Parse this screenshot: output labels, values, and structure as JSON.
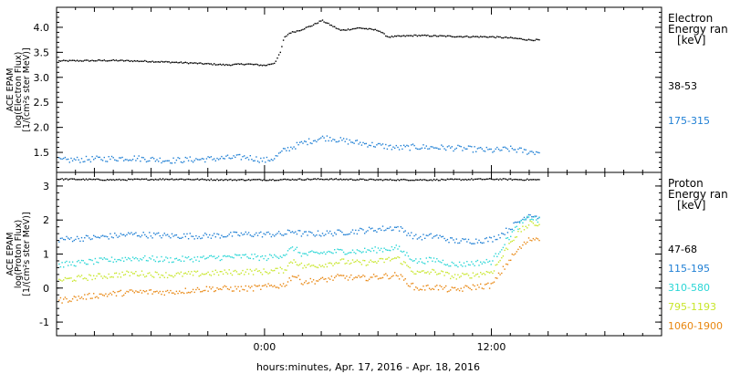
{
  "chart_data": [
    {
      "type": "scatter",
      "panel": "electron",
      "ylabel_lines": [
        "ACE EPAM",
        "log(Electron Flux)",
        "[1/(cm²s ster MeV)]"
      ],
      "ylim": [
        1.1,
        4.4
      ],
      "yticks": [
        1.5,
        2.0,
        2.5,
        3.0,
        3.5,
        4.0
      ],
      "ytick_labels": [
        "1.5",
        "2.0",
        "2.5",
        "3.0",
        "3.5",
        "4.0"
      ],
      "legend_title_lines": [
        "Electron",
        "Energy ran",
        "[keV]"
      ],
      "x_range_hours": [
        -11,
        21
      ],
      "series": [
        {
          "name": "38-53",
          "color": "#000000",
          "x": [
            -10.9,
            -8,
            -6,
            -4,
            -3,
            -2,
            -1,
            0,
            0.5,
            0.8,
            1,
            1.3,
            1.8,
            2.5,
            3,
            3.5,
            4,
            5,
            6,
            6.5,
            7,
            8,
            10,
            12,
            13,
            14,
            14.5
          ],
          "y": [
            3.34,
            3.35,
            3.33,
            3.3,
            3.28,
            3.26,
            3.28,
            3.25,
            3.3,
            3.5,
            3.8,
            3.9,
            3.95,
            4.05,
            4.15,
            4.05,
            3.95,
            4.0,
            3.95,
            3.82,
            3.83,
            3.85,
            3.83,
            3.82,
            3.8,
            3.76,
            3.76
          ]
        },
        {
          "name": "175-315",
          "color": "#1f7fd4",
          "x": [
            -10.9,
            -9,
            -7,
            -5,
            -3,
            -2,
            -1,
            0,
            0.5,
            1,
            2,
            3,
            3.5,
            4,
            5,
            6,
            7,
            8,
            10,
            12,
            13,
            14,
            14.5
          ],
          "y": [
            1.35,
            1.38,
            1.4,
            1.35,
            1.38,
            1.4,
            1.42,
            1.35,
            1.4,
            1.55,
            1.7,
            1.8,
            1.8,
            1.75,
            1.7,
            1.65,
            1.6,
            1.62,
            1.6,
            1.55,
            1.58,
            1.52,
            1.52
          ]
        }
      ]
    },
    {
      "type": "scatter",
      "panel": "proton",
      "ylabel_lines": [
        "ACE EPAM",
        "log(Proton Flux)",
        "[1/(cm²s ster MeV)]"
      ],
      "ylim": [
        -1.4,
        3.4
      ],
      "yticks": [
        -1,
        0,
        1,
        2,
        3
      ],
      "ytick_labels": [
        "-1",
        "0",
        "1",
        "2",
        "3"
      ],
      "legend_title_lines": [
        "Proton",
        "Energy ran",
        "[keV]"
      ],
      "x_range_hours": [
        -11,
        21
      ],
      "xticks": [
        0,
        12
      ],
      "xtick_labels": [
        "0:00",
        "12:00"
      ],
      "xlabel": "hours:minutes, Apr. 17, 2016 - Apr. 18, 2016",
      "series": [
        {
          "name": "47-68",
          "color": "#000000",
          "x": [
            -10.9,
            -8,
            -5,
            -2,
            0,
            3,
            6,
            9,
            12,
            14.5
          ],
          "y": [
            3.22,
            3.2,
            3.22,
            3.2,
            3.2,
            3.22,
            3.2,
            3.2,
            3.22,
            3.2
          ]
        },
        {
          "name": "115-195",
          "color": "#1f7fd4",
          "x": [
            -10.9,
            -9,
            -7,
            -5,
            -3,
            -1,
            0,
            1,
            1.5,
            2,
            3,
            4,
            5,
            6,
            7,
            8,
            9,
            10,
            11,
            12,
            12.5,
            13,
            13.5,
            14,
            14.5
          ],
          "y": [
            1.45,
            1.5,
            1.6,
            1.55,
            1.55,
            1.6,
            1.6,
            1.6,
            1.7,
            1.6,
            1.62,
            1.65,
            1.7,
            1.75,
            1.8,
            1.5,
            1.55,
            1.4,
            1.4,
            1.45,
            1.6,
            1.8,
            2.0,
            2.2,
            2.1
          ]
        },
        {
          "name": "310-580",
          "color": "#2ad6d6",
          "x": [
            -10.9,
            -9,
            -7,
            -5,
            -3,
            -1,
            0,
            1,
            1.5,
            2,
            3,
            4,
            5,
            6,
            7,
            8,
            9,
            10,
            11,
            12,
            12.5,
            13,
            13.5,
            14,
            14.5
          ],
          "y": [
            0.7,
            0.8,
            0.9,
            0.85,
            0.9,
            0.95,
            0.9,
            1.0,
            1.2,
            1.0,
            1.05,
            1.1,
            1.1,
            1.15,
            1.2,
            0.8,
            0.85,
            0.7,
            0.75,
            0.8,
            1.2,
            1.6,
            1.9,
            2.1,
            2.0
          ]
        },
        {
          "name": "795-1193",
          "color": "#c8e62a",
          "x": [
            -10.9,
            -9,
            -7,
            -5,
            -3,
            -1,
            0,
            1,
            1.5,
            2,
            3,
            4,
            5,
            6,
            7,
            8,
            9,
            10,
            11,
            12,
            12.5,
            13,
            13.5,
            14,
            14.5
          ],
          "y": [
            0.25,
            0.35,
            0.45,
            0.4,
            0.45,
            0.5,
            0.5,
            0.55,
            0.85,
            0.65,
            0.7,
            0.8,
            0.75,
            0.8,
            0.9,
            0.45,
            0.5,
            0.35,
            0.4,
            0.5,
            0.9,
            1.4,
            1.7,
            1.9,
            1.9
          ]
        },
        {
          "name": "1060-1900",
          "color": "#e8860f",
          "x": [
            -10.9,
            -9,
            -7,
            -5,
            -3,
            -1,
            0,
            1,
            1.5,
            2,
            3,
            4,
            5,
            6,
            7,
            8,
            9,
            10,
            11,
            12,
            12.5,
            13,
            13.5,
            14,
            14.5
          ],
          "y": [
            -0.35,
            -0.2,
            -0.1,
            -0.1,
            0.0,
            0.0,
            0.05,
            0.1,
            0.4,
            0.2,
            0.25,
            0.35,
            0.3,
            0.35,
            0.4,
            0.0,
            0.05,
            -0.05,
            0.05,
            0.1,
            0.5,
            0.9,
            1.2,
            1.45,
            1.5
          ]
        }
      ]
    }
  ]
}
